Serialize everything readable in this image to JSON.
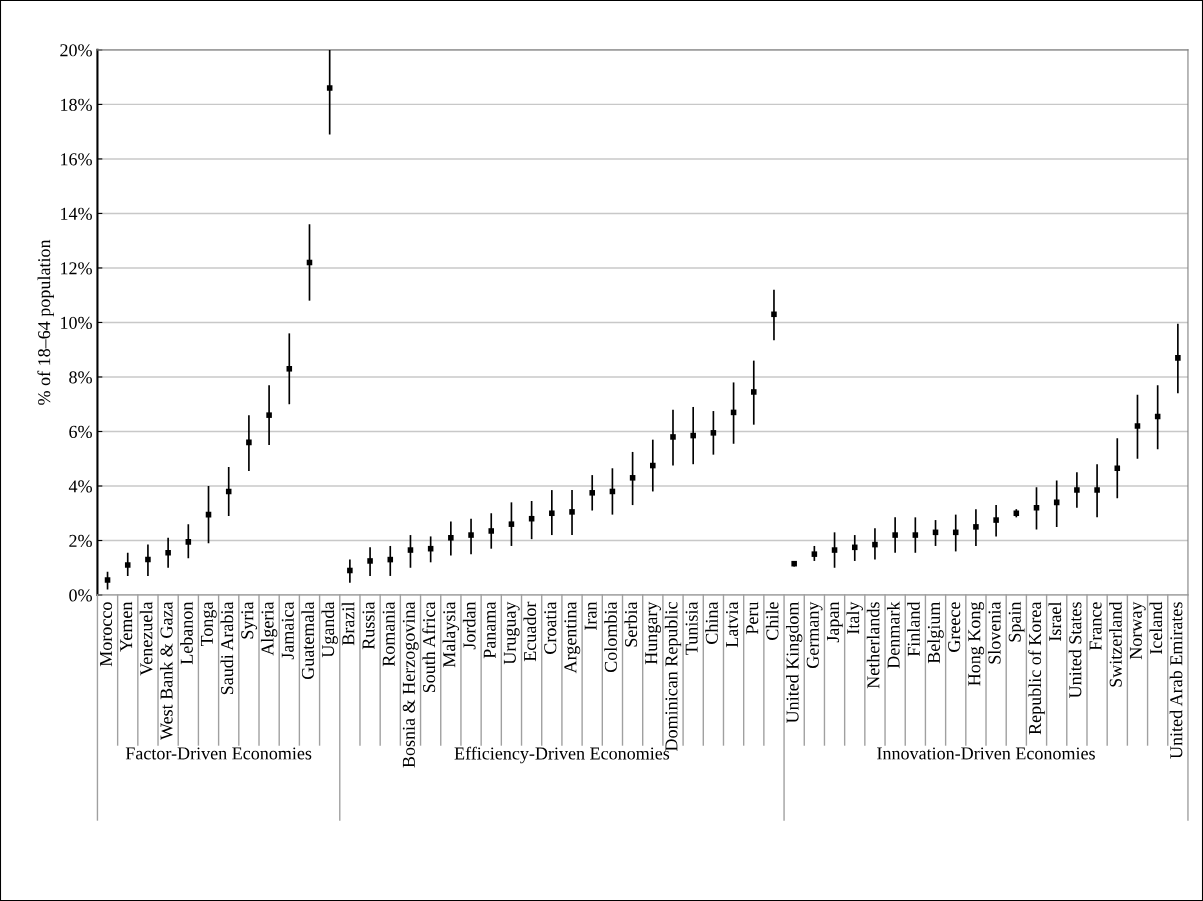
{
  "chart_data": {
    "type": "scatter",
    "ylabel": "% of 18–64 population",
    "categories": [
      "Morocco",
      "Yemen",
      "Venezuela",
      "West Bank & Gaza",
      "Lebanon",
      "Tonga",
      "Saudi Arabia",
      "Syria",
      "Algeria",
      "Jamaica",
      "Guatemala",
      "Uganda",
      "Brazil",
      "Russia",
      "Romania",
      "Bosnia & Herzogovina",
      "South Africa",
      "Malaysia",
      "Jordan",
      "Panama",
      "Uruguay",
      "Ecuador",
      "Croatia",
      "Argentina",
      "Iran",
      "Colombia",
      "Serbia",
      "Hungary",
      "Dominican Republic",
      "Tunisia",
      "China",
      "Latvia",
      "Peru",
      "Chile",
      "United Kingdom",
      "Germany",
      "Japan",
      "Italy",
      "Netherlands",
      "Denmark",
      "Finland",
      "Belgium",
      "Greece",
      "Hong Kong",
      "Slovenia",
      "Spain",
      "Republic of Korea",
      "Israel",
      "United States",
      "France",
      "Switzerland",
      "Norway",
      "Iceland",
      "United Arab Emirates"
    ],
    "series": [
      {
        "color": "#000000",
        "values": [
          0.55,
          1.1,
          1.3,
          1.55,
          1.95,
          2.95,
          3.8,
          5.6,
          6.6,
          8.3,
          12.2,
          18.6,
          0.9,
          1.25,
          1.3,
          1.65,
          1.7,
          2.1,
          2.2,
          2.35,
          2.6,
          2.8,
          3.0,
          3.05,
          3.75,
          3.8,
          4.3,
          4.75,
          5.8,
          5.85,
          5.95,
          6.7,
          7.45,
          10.3,
          1.15,
          1.5,
          1.65,
          1.75,
          1.85,
          2.2,
          2.2,
          2.3,
          2.3,
          2.5,
          2.75,
          3.0,
          3.2,
          3.4,
          3.85,
          3.85,
          4.65,
          6.2,
          6.55,
          8.7
        ],
        "errors": [
          [
            0.2,
            0.85
          ],
          [
            0.7,
            1.55
          ],
          [
            0.7,
            1.85
          ],
          [
            1.0,
            2.1
          ],
          [
            1.35,
            2.6
          ],
          [
            1.9,
            4.0
          ],
          [
            2.9,
            4.7
          ],
          [
            4.55,
            6.6
          ],
          [
            5.5,
            7.7
          ],
          [
            7.0,
            9.6
          ],
          [
            10.8,
            13.6
          ],
          [
            16.9,
            20
          ],
          [
            0.45,
            1.3
          ],
          [
            0.7,
            1.75
          ],
          [
            0.7,
            1.8
          ],
          [
            1.0,
            2.2
          ],
          [
            1.2,
            2.15
          ],
          [
            1.45,
            2.7
          ],
          [
            1.5,
            2.8
          ],
          [
            1.7,
            3.0
          ],
          [
            1.8,
            3.4
          ],
          [
            2.05,
            3.45
          ],
          [
            2.2,
            3.85
          ],
          [
            2.2,
            3.85
          ],
          [
            3.1,
            4.4
          ],
          [
            2.95,
            4.65
          ],
          [
            3.3,
            5.25
          ],
          [
            3.8,
            5.7
          ],
          [
            4.75,
            6.8
          ],
          [
            4.8,
            6.9
          ],
          [
            5.15,
            6.75
          ],
          [
            5.55,
            7.8
          ],
          [
            6.25,
            8.6
          ],
          [
            9.35,
            11.2
          ],
          [
            1.05,
            1.25
          ],
          [
            1.25,
            1.8
          ],
          [
            1.0,
            2.3
          ],
          [
            1.25,
            2.2
          ],
          [
            1.3,
            2.45
          ],
          [
            1.55,
            2.85
          ],
          [
            1.55,
            2.85
          ],
          [
            1.8,
            2.75
          ],
          [
            1.6,
            2.95
          ],
          [
            1.8,
            3.15
          ],
          [
            2.15,
            3.3
          ],
          [
            2.85,
            3.15
          ],
          [
            2.4,
            3.95
          ],
          [
            2.5,
            4.2
          ],
          [
            3.2,
            4.5
          ],
          [
            2.85,
            4.8
          ],
          [
            3.55,
            5.75
          ],
          [
            5.0,
            7.35
          ],
          [
            5.35,
            7.7
          ],
          [
            7.4,
            9.95
          ]
        ]
      }
    ],
    "ylim": [
      0,
      20
    ],
    "yticks": [
      {
        "value": 0,
        "label": "0%"
      },
      {
        "value": 2,
        "label": "2%"
      },
      {
        "value": 4,
        "label": "4%"
      },
      {
        "value": 6,
        "label": "6%"
      },
      {
        "value": 8,
        "label": "8%"
      },
      {
        "value": 10,
        "label": "10%"
      },
      {
        "value": 12,
        "label": "12%"
      },
      {
        "value": 14,
        "label": "14%"
      },
      {
        "value": 16,
        "label": "16%"
      },
      {
        "value": 18,
        "label": "18%"
      },
      {
        "value": 20,
        "label": "20%"
      }
    ],
    "grid": "y",
    "marker": "square",
    "legend": false,
    "annotations": [
      "Factor-Driven Economies",
      "Efficiency-Driven Economies",
      "Innovation-Driven Economies"
    ]
  }
}
